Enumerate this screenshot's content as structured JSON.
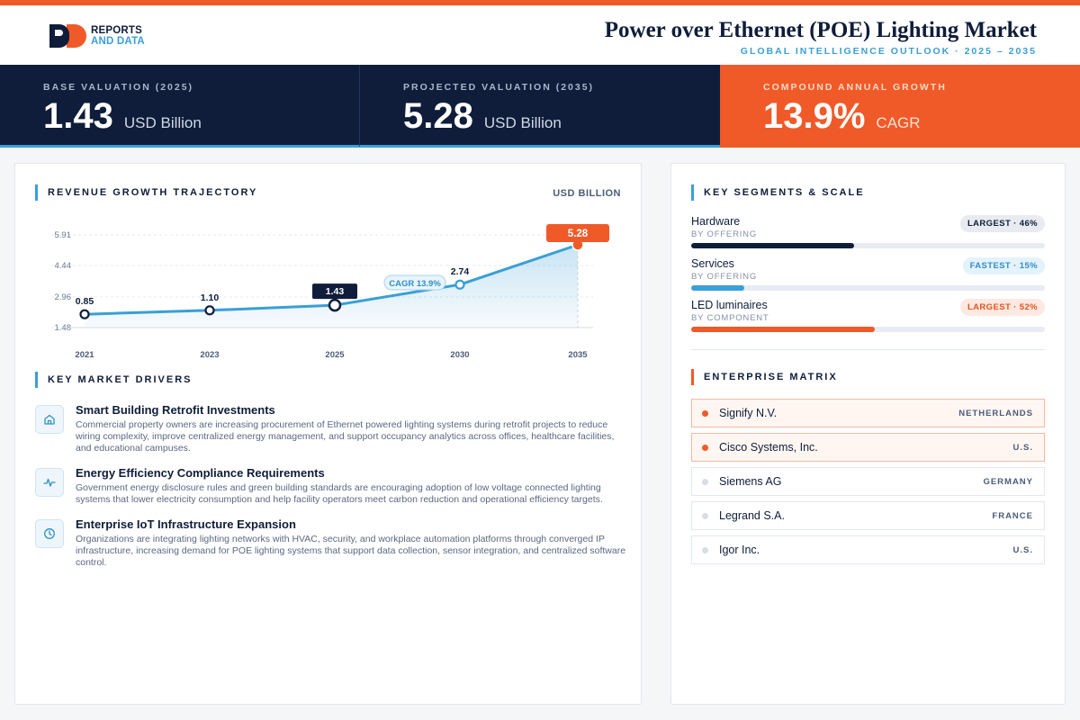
{
  "header": {
    "logo_line1": "REPORTS",
    "logo_line2": "AND DATA",
    "title": "Power over Ethernet (POE) Lighting Market",
    "subtitle": "GLOBAL INTELLIGENCE OUTLOOK  ·  2025 – 2035"
  },
  "kpis": [
    {
      "label": "BASE VALUATION (2025)",
      "value": "1.43",
      "unit": "USD Billion"
    },
    {
      "label": "PROJECTED VALUATION (2035)",
      "value": "5.28",
      "unit": "USD Billion"
    },
    {
      "label": "COMPOUND ANNUAL GROWTH",
      "value": "13.9%",
      "unit": "CAGR"
    }
  ],
  "revenue": {
    "title": "REVENUE GROWTH TRAJECTORY",
    "unit": "USD BILLION",
    "cagr_label": "CAGR 13.9%"
  },
  "chart_data": {
    "type": "area",
    "x": [
      "2021",
      "2023",
      "2025",
      "2030",
      "2035"
    ],
    "values": [
      0.85,
      1.1,
      1.43,
      2.74,
      5.28
    ],
    "labels": [
      "0.85",
      "1.10",
      "1.43",
      "2.74",
      "5.28"
    ],
    "yticks": [
      "5.91",
      "4.44",
      "2.96",
      "1.48"
    ],
    "ylim": [
      0.0,
      5.91
    ],
    "grid": true,
    "colors": {
      "line": "#3a9fd6",
      "navy": "#0f1d3a",
      "accent": "#f05a28"
    }
  },
  "drivers": {
    "title": "KEY MARKET DRIVERS",
    "items": [
      {
        "icon": "home-icon",
        "title": "Smart Building Retrofit Investments",
        "desc": "Commercial property owners are increasing procurement of Ethernet powered lighting systems during retrofit projects to reduce wiring complexity, improve centralized energy management, and support occupancy analytics across offices, healthcare facilities, and educational campuses."
      },
      {
        "icon": "pulse-icon",
        "title": "Energy Efficiency Compliance Requirements",
        "desc": "Government energy disclosure rules and green building standards are encouraging adoption of low voltage connected lighting systems that lower electricity consumption and help facility operators meet carbon reduction and operational efficiency targets."
      },
      {
        "icon": "clock-icon",
        "title": "Enterprise IoT Infrastructure Expansion",
        "desc": "Organizations are integrating lighting networks with HVAC, security, and workplace automation platforms through converged IP infrastructure, increasing demand for POE lighting systems that support data collection, sensor integration, and centralized software control."
      }
    ]
  },
  "segments": {
    "title": "KEY SEGMENTS & SCALE",
    "items": [
      {
        "name": "Hardware",
        "category": "BY OFFERING",
        "badge": "LARGEST · 46%",
        "share": 0.46,
        "color": "#0f1d3a"
      },
      {
        "name": "Services",
        "category": "BY OFFERING",
        "badge": "FASTEST · 15%",
        "share": 0.15,
        "color": "#3a9fd6"
      },
      {
        "name": "LED luminaires",
        "category": "BY COMPONENT",
        "badge": "LARGEST · 52%",
        "share": 0.52,
        "color": "#f05a28"
      }
    ]
  },
  "matrix": {
    "title": "ENTERPRISE MATRIX",
    "rows": [
      {
        "name": "Signify N.V.",
        "country": "NETHERLANDS",
        "highlight": true
      },
      {
        "name": "Cisco Systems, Inc.",
        "country": "U.S.",
        "highlight": true
      },
      {
        "name": "Siemens AG",
        "country": "GERMANY",
        "highlight": false
      },
      {
        "name": "Legrand S.A.",
        "country": "FRANCE",
        "highlight": false
      },
      {
        "name": "Igor Inc.",
        "country": "U.S.",
        "highlight": false
      }
    ]
  }
}
